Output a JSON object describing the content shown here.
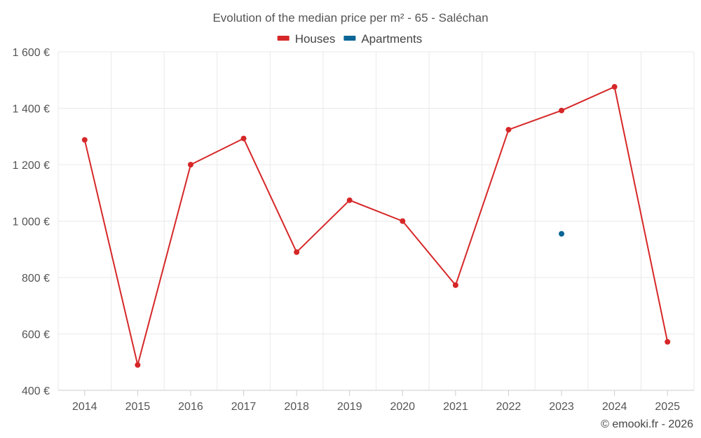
{
  "chart_data": {
    "type": "line",
    "title": "Evolution of the median price per m² - 65 - Saléchan",
    "categories": [
      "2014",
      "2015",
      "2016",
      "2017",
      "2018",
      "2019",
      "2020",
      "2021",
      "2022",
      "2023",
      "2024",
      "2025"
    ],
    "series": [
      {
        "name": "Houses",
        "color": "#d62728",
        "values": [
          1288,
          490,
          1200,
          1293,
          890,
          1074,
          1000,
          773,
          1324,
          1392,
          1476,
          572
        ]
      },
      {
        "name": "Apartments",
        "color": "#0a6696",
        "values": [
          null,
          null,
          null,
          null,
          null,
          null,
          null,
          null,
          null,
          955,
          null,
          null
        ]
      }
    ],
    "ylim": [
      400,
      1600
    ],
    "yticks": [
      400,
      600,
      800,
      1000,
      1200,
      1400,
      1600
    ],
    "ytick_labels": [
      "400 €",
      "600 €",
      "800 €",
      "1 000 €",
      "1 200 €",
      "1 400 €",
      "1 600 €"
    ],
    "grid": true,
    "legend_position": "top-center",
    "xlabel": "",
    "ylabel": ""
  },
  "credit": "© emooki.fr - 2026"
}
